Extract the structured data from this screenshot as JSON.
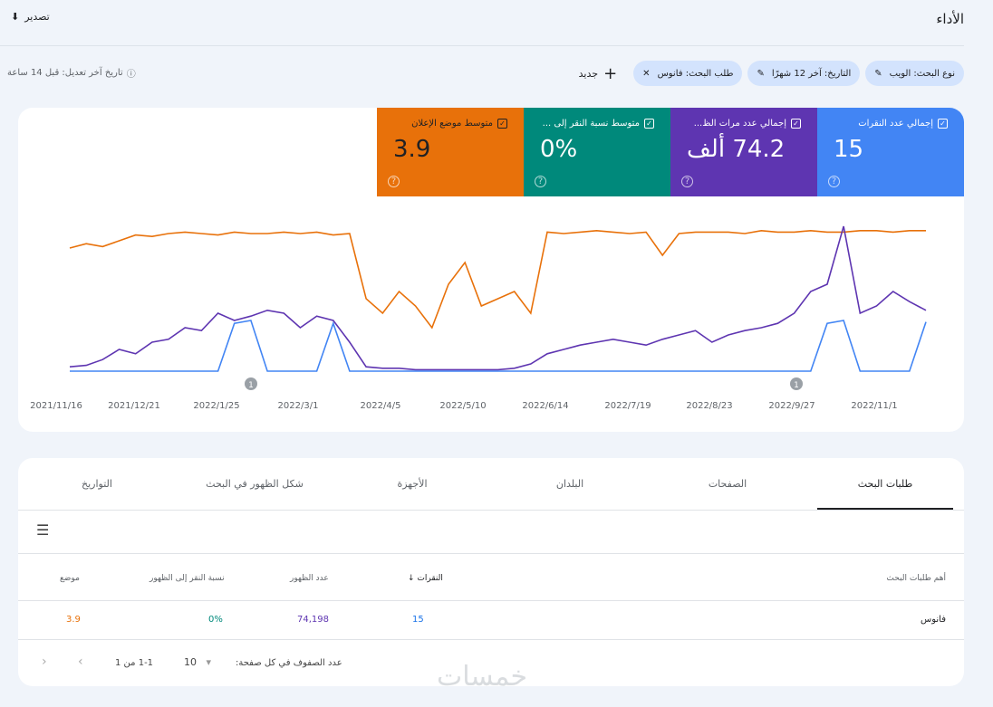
{
  "header": {
    "title": "الأداء",
    "export_label": "تصدير"
  },
  "filters": {
    "chips": [
      {
        "label": "نوع البحث: الويب",
        "icon": "pencil-icon"
      },
      {
        "label": "التاريخ: آخر 12 شهرًا",
        "icon": "pencil-icon"
      },
      {
        "label": "طلب البحث: فانوس",
        "icon": "close-icon"
      }
    ],
    "new_label": "جديد",
    "last_updated": "تاريخ آخر تعديل: قبل 14 ساعة"
  },
  "metrics": [
    {
      "label": "إجمالي عدد النقرات",
      "value": "15",
      "color": "#4285f4",
      "checked": true
    },
    {
      "label": "إجمالي عدد مرات الظ...",
      "value": "74.2 ألف",
      "color": "#5e35b1",
      "checked": true
    },
    {
      "label": "متوسط نسبة النقر إلى ...",
      "value": "0%",
      "color": "#00897b",
      "checked": true
    },
    {
      "label": "متوسط موضع الإعلان",
      "value": "3.9",
      "color": "#e8710a",
      "checked": true
    }
  ],
  "chart_data": {
    "type": "line",
    "x_ticks": [
      "2021/11/16",
      "2021/12/21",
      "2022/1/25",
      "2022/3/1",
      "2022/4/5",
      "2022/5/10",
      "2022/6/14",
      "2022/7/19",
      "2022/8/23",
      "2022/9/27",
      "2022/11/1"
    ],
    "annotations": [
      {
        "date": "2022/1/25",
        "label": "1"
      },
      {
        "date": "2022/10/1",
        "label": "1"
      }
    ],
    "grid": false,
    "series": [
      {
        "color": "#e8710a",
        "values": [
          85,
          88,
          86,
          90,
          94,
          93,
          95,
          96,
          95,
          94,
          96,
          95,
          95,
          96,
          95,
          96,
          94,
          95,
          50,
          40,
          55,
          45,
          30,
          60,
          75,
          45,
          50,
          55,
          40,
          96,
          95,
          96,
          97,
          96,
          95,
          96,
          80,
          95,
          96,
          96,
          96,
          95,
          97,
          96,
          96,
          97,
          96,
          96,
          97,
          97,
          96,
          97,
          97
        ]
      },
      {
        "color": "#5e35b1",
        "values": [
          3,
          4,
          8,
          15,
          12,
          20,
          22,
          30,
          28,
          40,
          35,
          38,
          42,
          40,
          30,
          38,
          35,
          20,
          3,
          2,
          2,
          1,
          1,
          1,
          1,
          1,
          1,
          2,
          5,
          12,
          15,
          18,
          20,
          22,
          20,
          18,
          22,
          25,
          28,
          20,
          25,
          28,
          30,
          33,
          40,
          55,
          60,
          100,
          40,
          45,
          55,
          48,
          42
        ]
      },
      {
        "color": "#4285f4",
        "values": [
          0,
          0,
          0,
          0,
          0,
          0,
          0,
          0,
          0,
          0,
          33,
          35,
          0,
          0,
          0,
          0,
          33,
          0,
          0,
          0,
          0,
          0,
          0,
          0,
          0,
          0,
          0,
          0,
          0,
          0,
          0,
          0,
          0,
          0,
          0,
          0,
          0,
          0,
          0,
          0,
          0,
          0,
          0,
          0,
          0,
          0,
          33,
          35,
          0,
          0,
          0,
          0,
          34
        ]
      }
    ]
  },
  "table": {
    "tabs": [
      "طلبات البحث",
      "الصفحات",
      "البلدان",
      "الأجهزة",
      "شكل الظهور في البحث",
      "التواريخ"
    ],
    "columns": [
      "أهم طلبات البحث",
      "النقرات",
      "عدد الظهور",
      "نسبة النقر إلى الظهور",
      "موضع"
    ],
    "rows": [
      {
        "query": "فانوس",
        "clicks": "15",
        "impressions": "74,198",
        "ctr": "0%",
        "position": "3.9"
      }
    ],
    "footer": {
      "rows_per_page_label": "عدد الصفوف في كل صفحة:",
      "rows_per_page": "10",
      "range": "1-1 من 1"
    }
  },
  "watermark": "خمسات"
}
